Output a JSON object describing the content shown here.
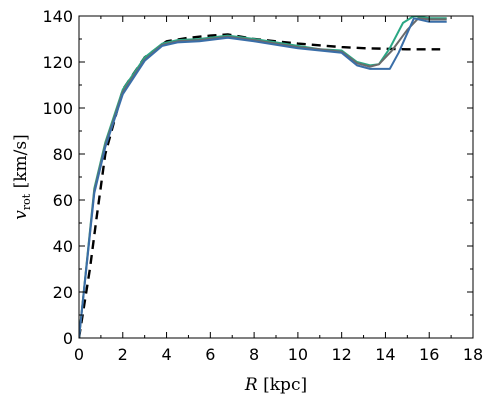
{
  "chart_data": {
    "type": "line",
    "xlabel_var": "R",
    "xlabel_unit": " [kpc]",
    "ylabel_var": "v",
    "ylabel_sub": "rot",
    "ylabel_unit": " [km/s]",
    "xlim": [
      0,
      18
    ],
    "ylim": [
      0,
      140
    ],
    "xticks": [
      0,
      2,
      4,
      6,
      8,
      10,
      12,
      14,
      16,
      18
    ],
    "yticks": [
      0,
      20,
      40,
      60,
      80,
      100,
      120,
      140
    ],
    "grid": false,
    "series": [
      {
        "style": "dashed",
        "color": "#000000",
        "x": [
          0,
          0.5,
          0.8,
          1.2,
          2,
          3,
          4,
          5,
          6,
          6.8,
          8,
          10,
          12,
          13,
          15,
          16.5
        ],
        "y": [
          0,
          30,
          52,
          80,
          108,
          122,
          129,
          130.5,
          131.5,
          132,
          130,
          128,
          126.5,
          126,
          125.5,
          125.5
        ]
      },
      {
        "style": "solid",
        "color": "#2aa784",
        "x": [
          0,
          0.7,
          1.2,
          2,
          3,
          3.8,
          4.5,
          5.5,
          6.8,
          8,
          9,
          10,
          11,
          12,
          12.7,
          13.3,
          13.7,
          14.2,
          14.8,
          15.3,
          16,
          16.8
        ],
        "y": [
          0,
          65,
          85,
          108,
          122,
          128,
          129.5,
          130,
          131.5,
          130,
          128.5,
          127,
          125.5,
          125,
          120,
          118.5,
          119,
          126,
          137,
          140,
          139,
          139
        ]
      },
      {
        "style": "solid",
        "color": "#6b6b6b",
        "x": [
          0,
          0.7,
          1.2,
          2,
          3,
          3.8,
          4.5,
          5.5,
          6.8,
          8,
          9,
          10,
          11,
          12,
          12.7,
          13.3,
          13.7,
          14.3,
          15,
          15.5,
          16,
          16.8
        ],
        "y": [
          0,
          64,
          84,
          107,
          121,
          127.5,
          129,
          129.5,
          131,
          129.5,
          128,
          126.5,
          125.5,
          124.5,
          119.5,
          118,
          119,
          125,
          134,
          139,
          138.5,
          138.5
        ]
      },
      {
        "style": "solid",
        "color": "#3a6ea8",
        "x": [
          0,
          0.7,
          1.2,
          2,
          3,
          3.8,
          4.5,
          5.5,
          6.8,
          8,
          9,
          10,
          11,
          12,
          12.7,
          13.3,
          13.7,
          14.2,
          14.6,
          15.3,
          16,
          16.8
        ],
        "y": [
          0,
          63,
          83,
          106,
          120.5,
          127,
          128.5,
          129,
          130.5,
          129,
          127.5,
          126,
          125,
          124,
          118.5,
          117,
          117,
          117,
          124,
          139,
          137.5,
          137.5
        ]
      }
    ]
  }
}
